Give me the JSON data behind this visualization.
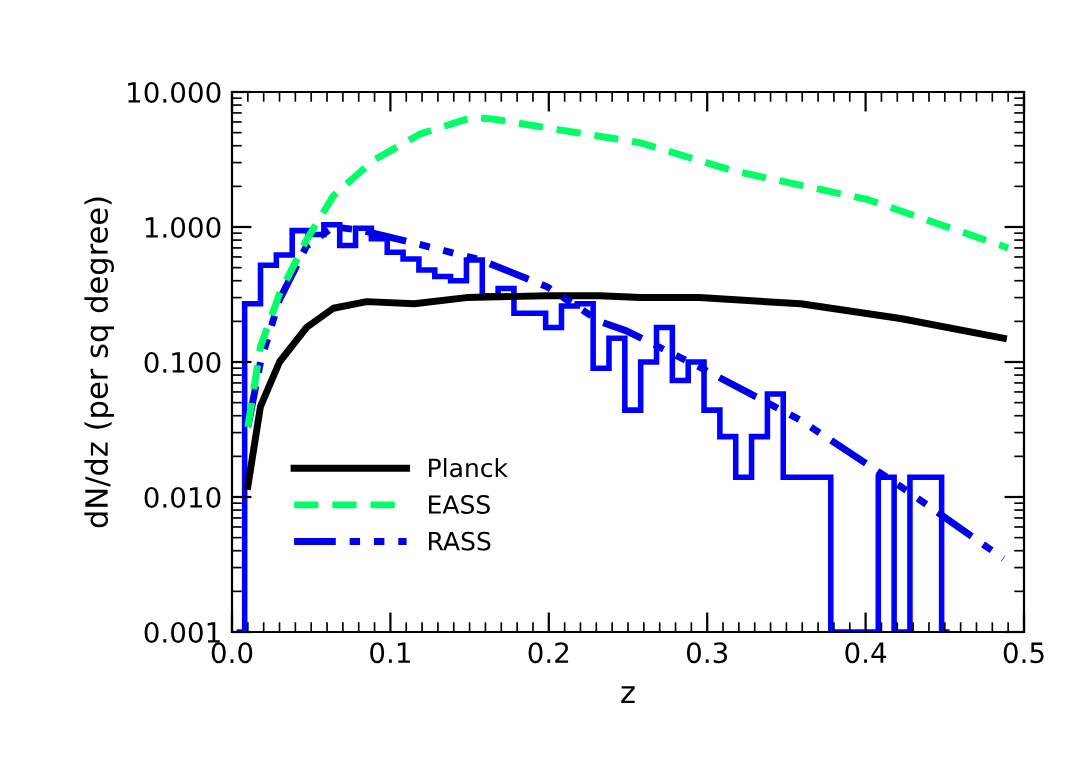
{
  "chart_data": {
    "type": "line",
    "xlabel": "z",
    "ylabel": "dN/dz (per sq degree)",
    "log": "y",
    "xlim": [
      0,
      0.5
    ],
    "xticks": [
      {
        "value": 0,
        "label": "0.0"
      },
      0.1,
      0.2,
      0.3,
      0.4,
      0.5
    ],
    "ylim": [
      0.001,
      10
    ],
    "yticks": [
      {
        "value": 0.001,
        "label": "0.001"
      },
      {
        "value": 0.01,
        "label": "0.010"
      },
      {
        "value": 0.1,
        "label": "0.100"
      },
      {
        "value": 1,
        "label": "1.000"
      },
      {
        "value": 10,
        "label": "10.000"
      }
    ],
    "grid": false,
    "legend": "bottom left",
    "series": [
      {
        "type": "step",
        "color": "#0000ff",
        "x": [
          0.003,
          0.013,
          0.023,
          0.033,
          0.043,
          0.053,
          0.063,
          0.073,
          0.083,
          0.093,
          0.103,
          0.113,
          0.123,
          0.133,
          0.143,
          0.153,
          0.163,
          0.173,
          0.183,
          0.193,
          0.203,
          0.213,
          0.223,
          0.233,
          0.243,
          0.253,
          0.263,
          0.273,
          0.283,
          0.293,
          0.303,
          0.313,
          0.323,
          0.333,
          0.343,
          0.353,
          0.363,
          0.373,
          0.383,
          0.393,
          0.403,
          0.413,
          0.423,
          0.433,
          0.443,
          0.453
        ],
        "values": [
          0.001,
          0.27,
          0.52,
          0.62,
          0.94,
          0.88,
          1.04,
          0.73,
          0.98,
          0.82,
          0.65,
          0.58,
          0.48,
          0.43,
          0.4,
          0.57,
          0.31,
          0.35,
          0.23,
          0.23,
          0.18,
          0.26,
          0.27,
          0.09,
          0.15,
          0.044,
          0.1,
          0.18,
          0.073,
          0.1,
          0.044,
          0.028,
          0.014,
          0.028,
          0.058,
          0.014,
          0.014,
          0.014,
          0.001,
          0.001,
          0.001,
          0.014,
          0.001,
          0.014,
          0.014,
          0.001
        ]
      },
      {
        "name": "Planck",
        "color": "#000000",
        "line_style": "solid",
        "x": [
          0.01,
          0.018,
          0.03,
          0.047,
          0.064,
          0.085,
          0.115,
          0.148,
          0.199,
          0.232,
          0.258,
          0.295,
          0.359,
          0.422,
          0.487
        ],
        "values": [
          0.012,
          0.047,
          0.1,
          0.18,
          0.25,
          0.28,
          0.27,
          0.3,
          0.31,
          0.31,
          0.3,
          0.3,
          0.27,
          0.21,
          0.15
        ]
      },
      {
        "name": "EASS",
        "color": "#00ff66",
        "line_style": "dashed",
        "x": [
          0.01,
          0.018,
          0.03,
          0.047,
          0.064,
          0.089,
          0.119,
          0.152,
          0.165,
          0.232,
          0.258,
          0.317,
          0.401,
          0.49
        ],
        "values": [
          0.033,
          0.13,
          0.32,
          0.8,
          1.7,
          3.1,
          4.9,
          6.5,
          6.3,
          4.7,
          4.2,
          2.6,
          1.6,
          0.7
        ]
      },
      {
        "name": "RASS",
        "color": "#0000e6",
        "line_style": "dashdot",
        "x": [
          0.01,
          0.018,
          0.03,
          0.047,
          0.064,
          0.081,
          0.115,
          0.157,
          0.199,
          0.232,
          0.249,
          0.295,
          0.359,
          0.422,
          0.487
        ],
        "values": [
          0.033,
          0.1,
          0.29,
          0.72,
          1.0,
          0.95,
          0.76,
          0.57,
          0.36,
          0.2,
          0.17,
          0.092,
          0.037,
          0.012,
          0.0035
        ]
      }
    ]
  }
}
